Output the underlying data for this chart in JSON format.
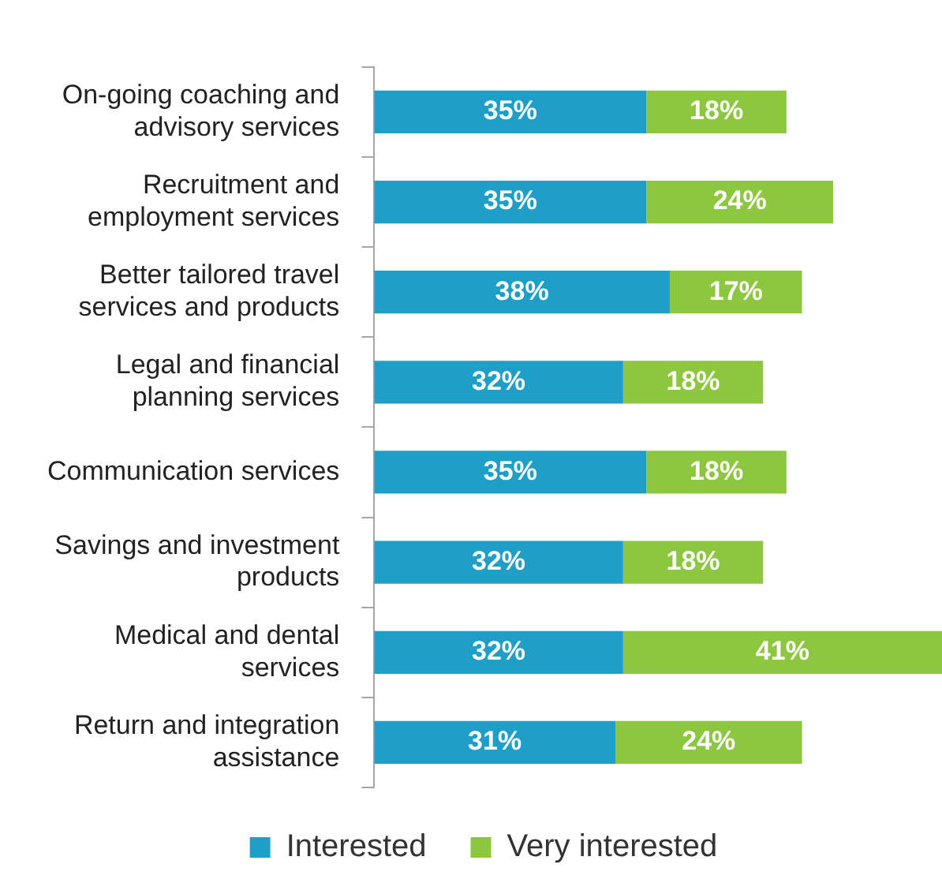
{
  "chart_data": {
    "type": "bar",
    "orientation": "horizontal",
    "stacked": true,
    "legend": "bottom",
    "grid": false,
    "categories": [
      "On-going coaching and advisory services",
      "Recruitment and employment services",
      "Better tailored travel services and products",
      "Legal and financial planning services",
      "Communication services",
      "Savings and investment products",
      "Medical and dental services",
      "Return and integration assistance"
    ],
    "series": [
      {
        "name": "Interested",
        "color": "#1f9fc7",
        "values": [
          35,
          35,
          38,
          32,
          35,
          32,
          32,
          31
        ],
        "value_labels": [
          "35%",
          "35%",
          "38%",
          "32%",
          "35%",
          "32%",
          "32%",
          "31%"
        ]
      },
      {
        "name": "Very interested",
        "color": "#8dc63f",
        "values": [
          18,
          24,
          17,
          18,
          18,
          18,
          41,
          24
        ],
        "value_labels": [
          "18%",
          "24%",
          "17%",
          "18%",
          "18%",
          "18%",
          "41%",
          "24%"
        ]
      }
    ]
  }
}
